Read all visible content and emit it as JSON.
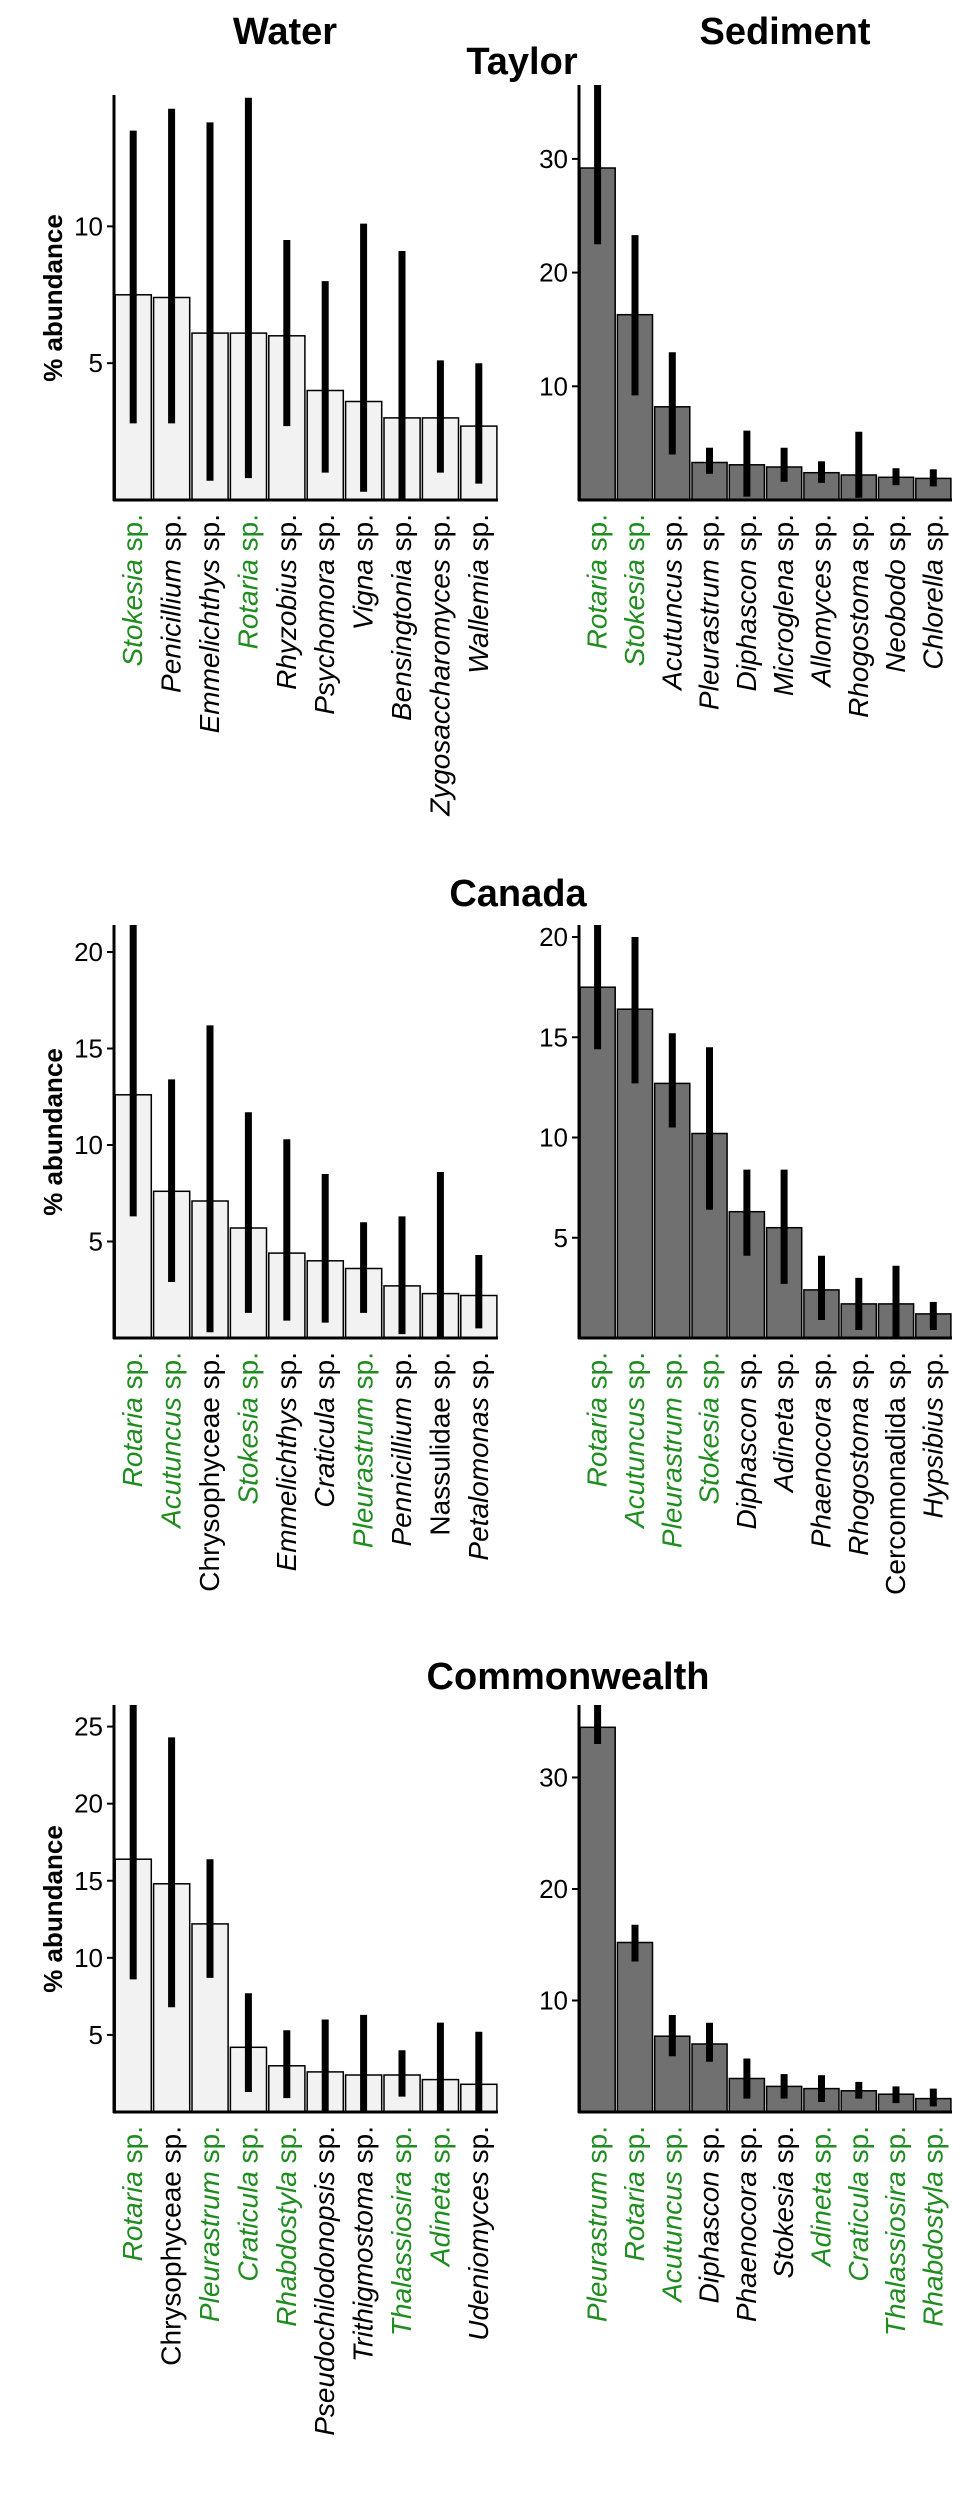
{
  "column_titles": [
    "Water",
    "Sediment"
  ],
  "colors": {
    "water_bar": "#f2f2f2",
    "sediment_bar": "#707070",
    "error_bar": "#000000",
    "highlight_label": "#1f8c1f",
    "normal_label": "#000000"
  },
  "chart_data": [
    {
      "type": "bar",
      "site": "Taylor",
      "sample": "Water",
      "ylabel": "% abundance",
      "ylim": [
        0,
        14.8
      ],
      "yticks": [
        5,
        10
      ],
      "categories": [
        {
          "genus": "Stokesia",
          "suffix": " sp.",
          "italic": true,
          "highlight": true
        },
        {
          "genus": "Penicillium",
          "suffix": " sp.",
          "italic": true,
          "highlight": false
        },
        {
          "genus": "Emmelichthys",
          "suffix": " sp.",
          "italic": true,
          "highlight": false
        },
        {
          "genus": "Rotaria",
          "suffix": " sp.",
          "italic": true,
          "highlight": true
        },
        {
          "genus": "Rhyzobius",
          "suffix": " sp.",
          "italic": true,
          "highlight": false
        },
        {
          "genus": "Psychomora",
          "suffix": " sp.",
          "italic": true,
          "highlight": false
        },
        {
          "genus": "Vigna",
          "suffix": " sp.",
          "italic": true,
          "highlight": false
        },
        {
          "genus": "Bensingtonia",
          "suffix": " sp.",
          "italic": true,
          "highlight": false
        },
        {
          "genus": "Zygosaccharomyces",
          "suffix": " sp.",
          "italic": true,
          "highlight": false
        },
        {
          "genus": "Wallemia",
          "suffix": " sp.",
          "italic": true,
          "highlight": false
        }
      ],
      "values": [
        7.5,
        7.4,
        6.1,
        6.1,
        6.0,
        4.0,
        3.6,
        3.0,
        3.0,
        2.7
      ],
      "err_low": [
        2.8,
        2.8,
        0.7,
        0.8,
        2.7,
        1.0,
        0.3,
        0.0,
        1.0,
        0.6
      ],
      "err_high": [
        13.5,
        14.3,
        13.8,
        14.7,
        9.5,
        8.0,
        10.1,
        9.1,
        5.1,
        5.0
      ]
    },
    {
      "type": "bar",
      "site": "Taylor",
      "sample": "Sediment",
      "ylabel": "",
      "ylim": [
        0,
        36.5
      ],
      "yticks": [
        10,
        20,
        30
      ],
      "categories": [
        {
          "genus": "Rotaria",
          "suffix": " sp.",
          "italic": true,
          "highlight": true
        },
        {
          "genus": "Stokesia",
          "suffix": " sp.",
          "italic": true,
          "highlight": true
        },
        {
          "genus": "Acutuncus",
          "suffix": " sp.",
          "italic": true,
          "highlight": false
        },
        {
          "genus": "Pleurastrum",
          "suffix": " sp.",
          "italic": true,
          "highlight": false
        },
        {
          "genus": "Diphascon",
          "suffix": " sp.",
          "italic": true,
          "highlight": false
        },
        {
          "genus": "Microglena",
          "suffix": " sp.",
          "italic": true,
          "highlight": false
        },
        {
          "genus": "Allomyces",
          "suffix": " sp.",
          "italic": true,
          "highlight": false
        },
        {
          "genus": "Rhogostoma",
          "suffix": " sp.",
          "italic": true,
          "highlight": false
        },
        {
          "genus": "Neobodo",
          "suffix": " sp.",
          "italic": true,
          "highlight": false
        },
        {
          "genus": "Chlorella",
          "suffix": " sp.",
          "italic": true,
          "highlight": false
        }
      ],
      "values": [
        29.2,
        16.3,
        8.2,
        3.3,
        3.1,
        2.9,
        2.4,
        2.2,
        2.0,
        1.9
      ],
      "err_low": [
        22.5,
        9.2,
        4.0,
        2.3,
        0.3,
        1.6,
        1.5,
        0.2,
        1.3,
        1.2
      ],
      "err_high": [
        36.5,
        23.3,
        13.0,
        4.6,
        6.1,
        4.6,
        3.4,
        6.0,
        2.8,
        2.7
      ]
    },
    {
      "type": "bar",
      "site": "Canada",
      "sample": "Water",
      "ylabel": "% abundance",
      "ylim": [
        0,
        21.4
      ],
      "yticks": [
        5,
        10,
        15,
        20
      ],
      "categories": [
        {
          "genus": "Rotaria",
          "suffix": " sp.",
          "italic": true,
          "highlight": true
        },
        {
          "genus": "Acutuncus",
          "suffix": " sp.",
          "italic": true,
          "highlight": true
        },
        {
          "genus": "Chrysophyceae sp.",
          "suffix": "",
          "italic": false,
          "highlight": false
        },
        {
          "genus": "Stokesia",
          "suffix": " sp.",
          "italic": true,
          "highlight": true
        },
        {
          "genus": "Emmelichthys",
          "suffix": " sp.",
          "italic": true,
          "highlight": false
        },
        {
          "genus": "Craticula",
          "suffix": " sp.",
          "italic": true,
          "highlight": false
        },
        {
          "genus": "Pleurastrum",
          "suffix": " sp.",
          "italic": true,
          "highlight": true
        },
        {
          "genus": "Pennicillium",
          "suffix": " sp.",
          "italic": true,
          "highlight": false
        },
        {
          "genus": "Nassulidae sp.",
          "suffix": "",
          "italic": false,
          "highlight": false
        },
        {
          "genus": "Petalomonas",
          "suffix": " sp.",
          "italic": true,
          "highlight": false
        }
      ],
      "values": [
        12.6,
        7.6,
        7.1,
        5.7,
        4.4,
        4.0,
        3.6,
        2.7,
        2.3,
        2.2
      ],
      "err_low": [
        6.3,
        2.9,
        0.3,
        1.3,
        0.9,
        0.8,
        1.3,
        0.2,
        0.0,
        0.5
      ],
      "err_high": [
        21.4,
        13.4,
        16.2,
        11.7,
        10.3,
        8.5,
        6.0,
        6.3,
        8.6,
        4.3
      ]
    },
    {
      "type": "bar",
      "site": "Canada",
      "sample": "Sediment",
      "ylabel": "",
      "ylim": [
        0,
        20.6
      ],
      "yticks": [
        5,
        10,
        15,
        20
      ],
      "categories": [
        {
          "genus": "Rotaria",
          "suffix": " sp.",
          "italic": true,
          "highlight": true
        },
        {
          "genus": "Acutuncus",
          "suffix": " sp.",
          "italic": true,
          "highlight": true
        },
        {
          "genus": "Pleurastrum",
          "suffix": " sp.",
          "italic": true,
          "highlight": true
        },
        {
          "genus": "Stokesia",
          "suffix": " sp.",
          "italic": true,
          "highlight": true
        },
        {
          "genus": "Diphascon",
          "suffix": " sp.",
          "italic": true,
          "highlight": false
        },
        {
          "genus": "Adineta",
          "suffix": " sp.",
          "italic": true,
          "highlight": false
        },
        {
          "genus": "Phaenocora",
          "suffix": " sp.",
          "italic": true,
          "highlight": false
        },
        {
          "genus": "Rhogostoma",
          "suffix": " sp.",
          "italic": true,
          "highlight": false
        },
        {
          "genus": "Cercomonadida sp.",
          "suffix": "",
          "italic": false,
          "highlight": false
        },
        {
          "genus": "Hypsibius",
          "suffix": " sp.",
          "italic": true,
          "highlight": false
        }
      ],
      "values": [
        17.5,
        16.4,
        12.7,
        10.2,
        6.3,
        5.5,
        2.4,
        1.7,
        1.7,
        1.2
      ],
      "err_low": [
        14.4,
        12.7,
        10.5,
        6.4,
        4.1,
        2.7,
        0.9,
        0.4,
        0.0,
        0.4
      ],
      "err_high": [
        20.6,
        20.0,
        15.2,
        14.5,
        8.4,
        8.4,
        4.1,
        3.0,
        3.6,
        1.8
      ]
    },
    {
      "type": "bar",
      "site": "Commonwealth",
      "sample": "Water",
      "ylabel": "% abundance",
      "ylim": [
        0,
        26.4
      ],
      "yticks": [
        5,
        10,
        15,
        20,
        25
      ],
      "categories": [
        {
          "genus": "Rotaria",
          "suffix": " sp.",
          "italic": true,
          "highlight": true
        },
        {
          "genus": "Chrysophyceae sp.",
          "suffix": "",
          "italic": false,
          "highlight": false
        },
        {
          "genus": "Pleurastrum",
          "suffix": " sp.",
          "italic": true,
          "highlight": true
        },
        {
          "genus": "Craticula",
          "suffix": " sp.",
          "italic": true,
          "highlight": true
        },
        {
          "genus": "Rhabdostyla",
          "suffix": " sp.",
          "italic": true,
          "highlight": true
        },
        {
          "genus": "Pseudochilodonopsis",
          "suffix": " sp.",
          "italic": true,
          "highlight": false
        },
        {
          "genus": "Trithigmostoma",
          "suffix": " sp.",
          "italic": true,
          "highlight": false
        },
        {
          "genus": "Thalassiosira",
          "suffix": " sp.",
          "italic": true,
          "highlight": true
        },
        {
          "genus": "Adineta",
          "suffix": " sp.",
          "italic": true,
          "highlight": true
        },
        {
          "genus": "Udeniomyces",
          "suffix": " sp.",
          "italic": true,
          "highlight": false
        }
      ],
      "values": [
        16.4,
        14.8,
        12.2,
        4.2,
        3.0,
        2.6,
        2.4,
        2.4,
        2.1,
        1.8
      ],
      "err_low": [
        8.6,
        6.8,
        8.7,
        1.3,
        0.9,
        0.0,
        0.0,
        1.0,
        0.0,
        0.0
      ],
      "err_high": [
        26.4,
        24.3,
        16.4,
        7.7,
        5.3,
        6.0,
        6.3,
        4.0,
        5.8,
        5.2
      ]
    },
    {
      "type": "bar",
      "site": "Commonwealth",
      "sample": "Sediment",
      "ylabel": "",
      "ylim": [
        0,
        36.5
      ],
      "yticks": [
        10,
        20,
        30
      ],
      "categories": [
        {
          "genus": "Pleurastrum",
          "suffix": " sp.",
          "italic": true,
          "highlight": true
        },
        {
          "genus": "Rotaria",
          "suffix": " sp.",
          "italic": true,
          "highlight": true
        },
        {
          "genus": "Acutuncus",
          "suffix": " sp.",
          "italic": true,
          "highlight": true
        },
        {
          "genus": "Diphascon",
          "suffix": " sp.",
          "italic": true,
          "highlight": false
        },
        {
          "genus": "Phaenocora",
          "suffix": " sp.",
          "italic": true,
          "highlight": false
        },
        {
          "genus": "Stokesia",
          "suffix": " sp.",
          "italic": true,
          "highlight": false
        },
        {
          "genus": "Adineta",
          "suffix": " sp.",
          "italic": true,
          "highlight": true
        },
        {
          "genus": "Craticula",
          "suffix": " sp.",
          "italic": true,
          "highlight": true
        },
        {
          "genus": "Thalassiosira",
          "suffix": " sp.",
          "italic": true,
          "highlight": true
        },
        {
          "genus": "Rhabdostyla",
          "suffix": " sp.",
          "italic": true,
          "highlight": true
        }
      ],
      "values": [
        34.5,
        15.2,
        6.8,
        6.1,
        3.0,
        2.3,
        2.1,
        1.9,
        1.6,
        1.2
      ],
      "err_low": [
        33.0,
        13.5,
        5.0,
        4.5,
        1.2,
        1.2,
        0.9,
        1.2,
        0.8,
        0.5
      ],
      "err_high": [
        36.5,
        16.8,
        8.7,
        8.0,
        4.8,
        3.4,
        3.3,
        2.7,
        2.3,
        2.1
      ]
    }
  ]
}
